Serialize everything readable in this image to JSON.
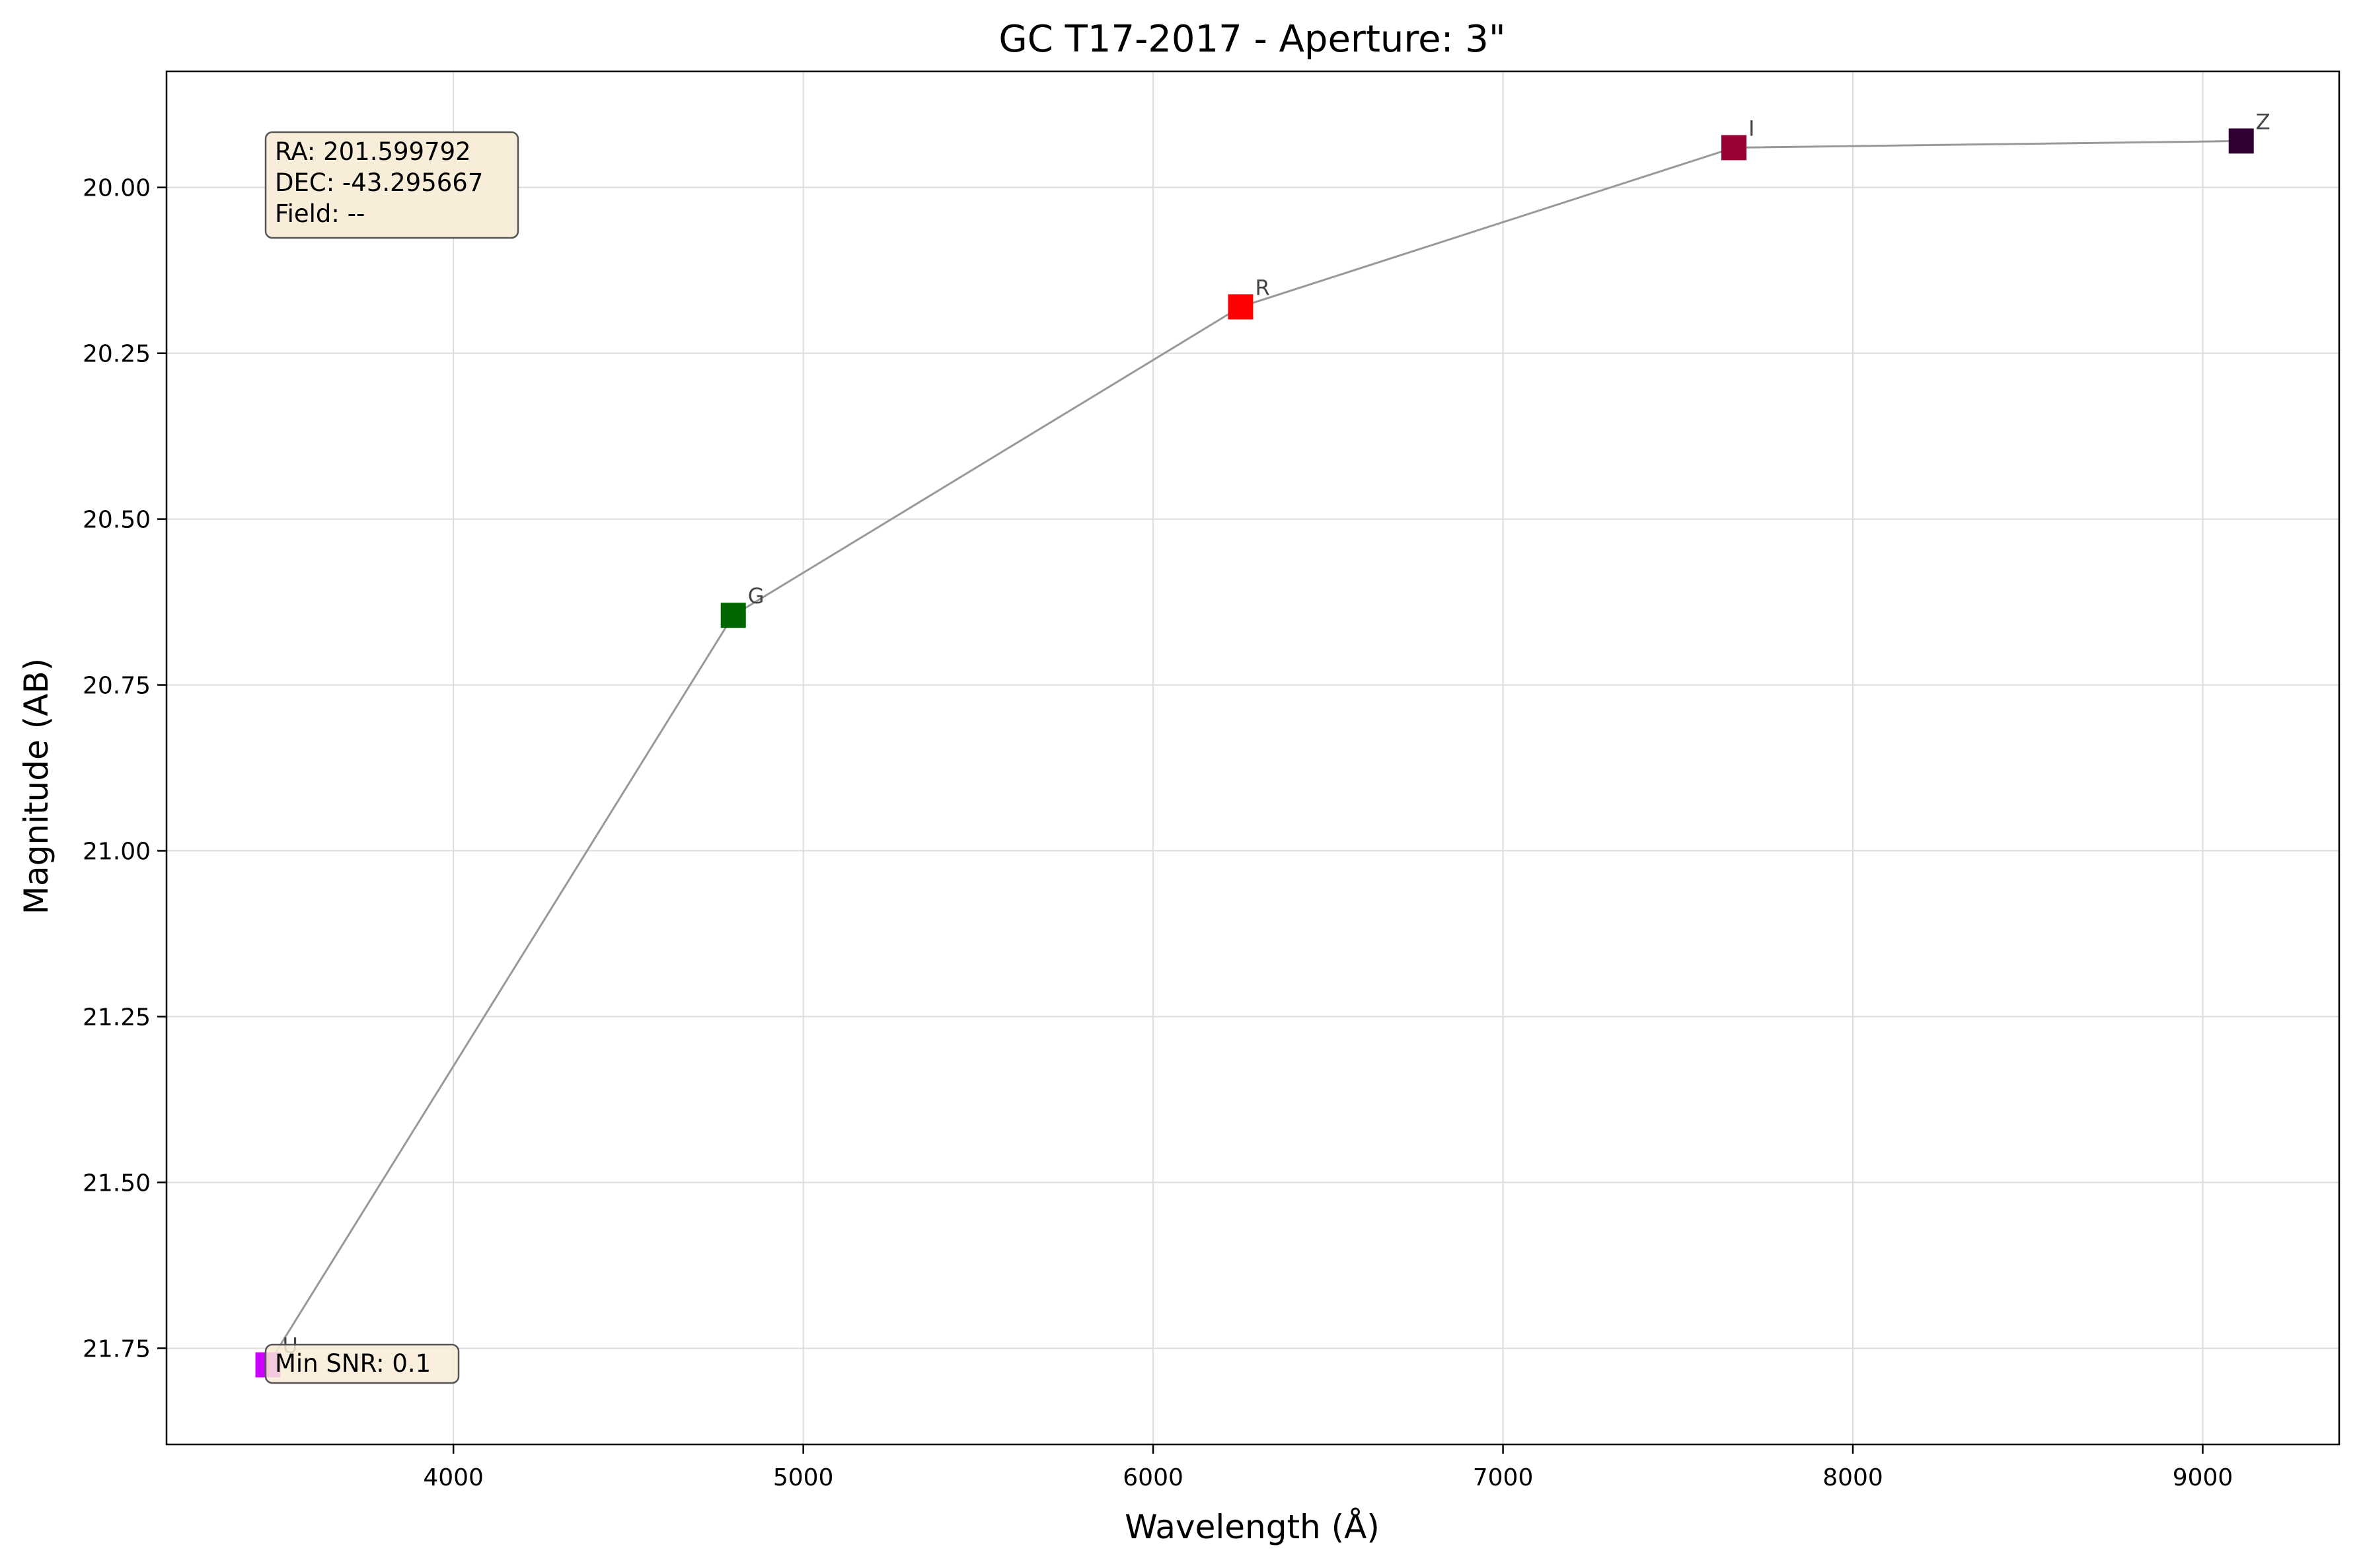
{
  "chart_data": {
    "type": "line",
    "title": "GC T17-2017 - Aperture: 3\"",
    "xlabel": "Wavelength (Å)",
    "ylabel": "Magnitude (AB)",
    "xlim": [
      3180,
      9390
    ],
    "ylim": [
      21.895,
      19.825
    ],
    "y_inverted": true,
    "grid": true,
    "x_ticks": [
      4000,
      5000,
      6000,
      7000,
      8000,
      9000
    ],
    "x_tick_labels": [
      "4000",
      "5000",
      "6000",
      "7000",
      "8000",
      "9000"
    ],
    "y_ticks": [
      20.0,
      20.25,
      20.5,
      20.75,
      21.0,
      21.25,
      21.5,
      21.75
    ],
    "y_tick_labels": [
      "20.00",
      "20.25",
      "20.50",
      "20.75",
      "21.00",
      "21.25",
      "21.50",
      "21.75"
    ],
    "line_color": "#999999",
    "marker": "square",
    "points": [
      {
        "band": "U",
        "x": 3470,
        "y": 21.775,
        "color": "#cc00ff"
      },
      {
        "band": "G",
        "x": 4800,
        "y": 20.645,
        "color": "#006600"
      },
      {
        "band": "R",
        "x": 6250,
        "y": 20.18,
        "color": "#ff0000"
      },
      {
        "band": "I",
        "x": 7660,
        "y": 19.94,
        "color": "#990033"
      },
      {
        "band": "Z",
        "x": 9110,
        "y": 19.93,
        "color": "#330033"
      }
    ],
    "info_box": {
      "lines": [
        "RA: 201.599792",
        "DEC: -43.295667",
        "Field: --"
      ],
      "placement": "top-left"
    },
    "snr_box": {
      "text": "Min SNR: 0.1",
      "placement": "bottom-left"
    },
    "annotation_box_fill": "#f8ecd6"
  }
}
